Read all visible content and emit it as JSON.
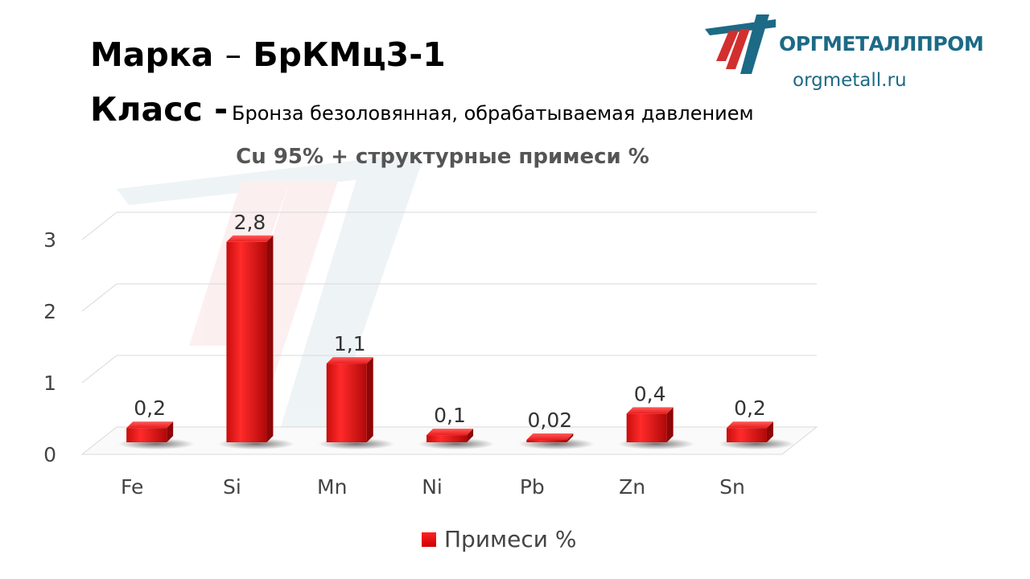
{
  "header": {
    "brand_label": "Марка",
    "brand_dash": "–",
    "brand_value": "БрКМц3-1",
    "class_label": "Класс -",
    "class_value": "Бронза безоловянная, обрабатываемая давлением"
  },
  "logo": {
    "name": "ОРГМЕТАЛЛПРОМ",
    "url": "orgmetall.ru",
    "color": "#1c6a86",
    "accent": "#d32f2f"
  },
  "chart_data": {
    "type": "bar",
    "title": "Cu 95% + структурные примеси %",
    "categories": [
      "Fe",
      "Si",
      "Mn",
      "Ni",
      "Pb",
      "Zn",
      "Sn"
    ],
    "series": [
      {
        "name": "Примеси %",
        "values": [
          0.2,
          2.8,
          1.1,
          0.1,
          0.02,
          0.4,
          0.2
        ],
        "labels": [
          "0,2",
          "2,8",
          "1,1",
          "0,1",
          "0,02",
          "0,4",
          "0,2"
        ],
        "color": "#e31b1b"
      }
    ],
    "yticks": [
      0,
      1,
      2,
      3
    ],
    "ylim": [
      0,
      3
    ],
    "grid": true,
    "legend": "bottom",
    "style": "3d"
  }
}
